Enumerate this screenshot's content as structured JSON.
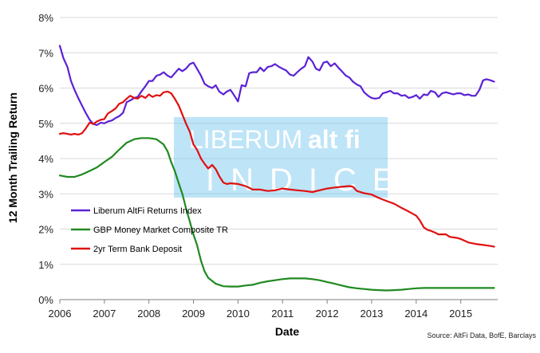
{
  "chart_data": {
    "type": "line",
    "xlabel": "Date",
    "ylabel": "12 Month Trailing Return",
    "source": "Source: AltFi Data, BofE, Barclays",
    "watermark": {
      "line1_a": "LIBERUM",
      "line1_b": "alt fi",
      "line2": "INDICES"
    },
    "xlim": [
      2006,
      2015.83
    ],
    "ylim": [
      0,
      8
    ],
    "x_ticks": [
      "2006",
      "2007",
      "2008",
      "2009",
      "2010",
      "2011",
      "2012",
      "2013",
      "2014",
      "2015"
    ],
    "y_ticks": [
      "0%",
      "1%",
      "2%",
      "3%",
      "4%",
      "5%",
      "6%",
      "7%",
      "8%"
    ],
    "grid": "horizontal",
    "legend_position": "bottom-left",
    "series": [
      {
        "name": "Liberum AltFi Returns Index",
        "color": "#5b21d6",
        "points": [
          [
            2006.0,
            7.2
          ],
          [
            2006.08,
            6.85
          ],
          [
            2006.17,
            6.6
          ],
          [
            2006.25,
            6.2
          ],
          [
            2006.33,
            5.95
          ],
          [
            2006.42,
            5.7
          ],
          [
            2006.5,
            5.5
          ],
          [
            2006.58,
            5.3
          ],
          [
            2006.67,
            5.1
          ],
          [
            2006.75,
            4.98
          ],
          [
            2006.83,
            4.95
          ],
          [
            2006.92,
            5.02
          ],
          [
            2007.0,
            5.0
          ],
          [
            2007.08,
            5.05
          ],
          [
            2007.17,
            5.08
          ],
          [
            2007.25,
            5.15
          ],
          [
            2007.33,
            5.2
          ],
          [
            2007.42,
            5.3
          ],
          [
            2007.5,
            5.6
          ],
          [
            2007.58,
            5.65
          ],
          [
            2007.67,
            5.72
          ],
          [
            2007.75,
            5.75
          ],
          [
            2007.83,
            5.9
          ],
          [
            2007.92,
            6.05
          ],
          [
            2008.0,
            6.2
          ],
          [
            2008.08,
            6.2
          ],
          [
            2008.17,
            6.35
          ],
          [
            2008.25,
            6.38
          ],
          [
            2008.33,
            6.45
          ],
          [
            2008.42,
            6.35
          ],
          [
            2008.5,
            6.3
          ],
          [
            2008.58,
            6.42
          ],
          [
            2008.67,
            6.55
          ],
          [
            2008.75,
            6.48
          ],
          [
            2008.83,
            6.55
          ],
          [
            2008.92,
            6.68
          ],
          [
            2009.0,
            6.72
          ],
          [
            2009.08,
            6.55
          ],
          [
            2009.17,
            6.35
          ],
          [
            2009.25,
            6.12
          ],
          [
            2009.33,
            6.05
          ],
          [
            2009.42,
            6.0
          ],
          [
            2009.5,
            6.08
          ],
          [
            2009.58,
            5.9
          ],
          [
            2009.67,
            5.82
          ],
          [
            2009.75,
            5.9
          ],
          [
            2009.83,
            5.95
          ],
          [
            2009.92,
            5.78
          ],
          [
            2010.0,
            5.62
          ],
          [
            2010.08,
            6.08
          ],
          [
            2010.17,
            6.05
          ],
          [
            2010.25,
            6.42
          ],
          [
            2010.33,
            6.45
          ],
          [
            2010.42,
            6.45
          ],
          [
            2010.5,
            6.58
          ],
          [
            2010.58,
            6.48
          ],
          [
            2010.67,
            6.6
          ],
          [
            2010.75,
            6.62
          ],
          [
            2010.83,
            6.68
          ],
          [
            2010.92,
            6.6
          ],
          [
            2011.0,
            6.55
          ],
          [
            2011.08,
            6.5
          ],
          [
            2011.17,
            6.38
          ],
          [
            2011.25,
            6.35
          ],
          [
            2011.33,
            6.45
          ],
          [
            2011.42,
            6.55
          ],
          [
            2011.5,
            6.62
          ],
          [
            2011.58,
            6.88
          ],
          [
            2011.67,
            6.75
          ],
          [
            2011.75,
            6.55
          ],
          [
            2011.83,
            6.5
          ],
          [
            2011.92,
            6.72
          ],
          [
            2012.0,
            6.75
          ],
          [
            2012.08,
            6.62
          ],
          [
            2012.17,
            6.7
          ],
          [
            2012.25,
            6.58
          ],
          [
            2012.33,
            6.48
          ],
          [
            2012.42,
            6.35
          ],
          [
            2012.5,
            6.3
          ],
          [
            2012.58,
            6.18
          ],
          [
            2012.67,
            6.1
          ],
          [
            2012.75,
            6.05
          ],
          [
            2012.83,
            5.88
          ],
          [
            2012.92,
            5.78
          ],
          [
            2013.0,
            5.72
          ],
          [
            2013.08,
            5.7
          ],
          [
            2013.17,
            5.72
          ],
          [
            2013.25,
            5.85
          ],
          [
            2013.33,
            5.88
          ],
          [
            2013.42,
            5.92
          ],
          [
            2013.5,
            5.85
          ],
          [
            2013.58,
            5.85
          ],
          [
            2013.67,
            5.78
          ],
          [
            2013.75,
            5.8
          ],
          [
            2013.83,
            5.72
          ],
          [
            2013.92,
            5.75
          ],
          [
            2014.0,
            5.8
          ],
          [
            2014.08,
            5.7
          ],
          [
            2014.17,
            5.82
          ],
          [
            2014.25,
            5.8
          ],
          [
            2014.33,
            5.92
          ],
          [
            2014.42,
            5.88
          ],
          [
            2014.5,
            5.75
          ],
          [
            2014.58,
            5.85
          ],
          [
            2014.67,
            5.88
          ],
          [
            2014.75,
            5.85
          ],
          [
            2014.83,
            5.82
          ],
          [
            2014.92,
            5.85
          ],
          [
            2015.0,
            5.85
          ],
          [
            2015.08,
            5.8
          ],
          [
            2015.17,
            5.82
          ],
          [
            2015.25,
            5.78
          ],
          [
            2015.33,
            5.78
          ],
          [
            2015.42,
            5.95
          ],
          [
            2015.5,
            6.22
          ],
          [
            2015.58,
            6.25
          ],
          [
            2015.67,
            6.22
          ],
          [
            2015.75,
            6.18
          ]
        ]
      },
      {
        "name": "GBP Money Market Composite TR",
        "color": "#1f8a1f",
        "points": [
          [
            2006.0,
            3.52
          ],
          [
            2006.17,
            3.48
          ],
          [
            2006.33,
            3.48
          ],
          [
            2006.5,
            3.55
          ],
          [
            2006.67,
            3.65
          ],
          [
            2006.83,
            3.75
          ],
          [
            2007.0,
            3.9
          ],
          [
            2007.17,
            4.05
          ],
          [
            2007.33,
            4.25
          ],
          [
            2007.5,
            4.45
          ],
          [
            2007.67,
            4.55
          ],
          [
            2007.83,
            4.58
          ],
          [
            2008.0,
            4.58
          ],
          [
            2008.17,
            4.55
          ],
          [
            2008.33,
            4.4
          ],
          [
            2008.42,
            4.2
          ],
          [
            2008.5,
            3.9
          ],
          [
            2008.58,
            3.65
          ],
          [
            2008.67,
            3.3
          ],
          [
            2008.75,
            3.0
          ],
          [
            2008.83,
            2.6
          ],
          [
            2008.92,
            2.2
          ],
          [
            2009.0,
            1.85
          ],
          [
            2009.08,
            1.55
          ],
          [
            2009.17,
            1.1
          ],
          [
            2009.25,
            0.8
          ],
          [
            2009.33,
            0.62
          ],
          [
            2009.5,
            0.45
          ],
          [
            2009.67,
            0.38
          ],
          [
            2009.83,
            0.37
          ],
          [
            2010.0,
            0.37
          ],
          [
            2010.17,
            0.4
          ],
          [
            2010.33,
            0.42
          ],
          [
            2010.5,
            0.48
          ],
          [
            2010.67,
            0.52
          ],
          [
            2010.83,
            0.55
          ],
          [
            2011.0,
            0.58
          ],
          [
            2011.17,
            0.6
          ],
          [
            2011.33,
            0.6
          ],
          [
            2011.5,
            0.6
          ],
          [
            2011.67,
            0.58
          ],
          [
            2011.83,
            0.55
          ],
          [
            2012.0,
            0.5
          ],
          [
            2012.17,
            0.45
          ],
          [
            2012.33,
            0.4
          ],
          [
            2012.5,
            0.35
          ],
          [
            2012.67,
            0.32
          ],
          [
            2012.83,
            0.3
          ],
          [
            2013.0,
            0.28
          ],
          [
            2013.17,
            0.27
          ],
          [
            2013.33,
            0.26
          ],
          [
            2013.5,
            0.27
          ],
          [
            2013.67,
            0.28
          ],
          [
            2013.83,
            0.3
          ],
          [
            2014.0,
            0.32
          ],
          [
            2014.17,
            0.33
          ],
          [
            2014.33,
            0.33
          ],
          [
            2014.5,
            0.33
          ],
          [
            2014.67,
            0.33
          ],
          [
            2014.83,
            0.33
          ],
          [
            2015.0,
            0.33
          ],
          [
            2015.17,
            0.33
          ],
          [
            2015.33,
            0.33
          ],
          [
            2015.5,
            0.33
          ],
          [
            2015.75,
            0.33
          ]
        ]
      },
      {
        "name": "2yr Term Bank Deposit",
        "color": "#e01010",
        "points": [
          [
            2006.0,
            4.7
          ],
          [
            2006.08,
            4.72
          ],
          [
            2006.17,
            4.7
          ],
          [
            2006.25,
            4.68
          ],
          [
            2006.33,
            4.7
          ],
          [
            2006.42,
            4.68
          ],
          [
            2006.5,
            4.72
          ],
          [
            2006.58,
            4.85
          ],
          [
            2006.67,
            5.02
          ],
          [
            2006.75,
            4.98
          ],
          [
            2006.83,
            5.05
          ],
          [
            2006.92,
            5.1
          ],
          [
            2007.0,
            5.12
          ],
          [
            2007.08,
            5.28
          ],
          [
            2007.17,
            5.35
          ],
          [
            2007.25,
            5.42
          ],
          [
            2007.33,
            5.55
          ],
          [
            2007.42,
            5.6
          ],
          [
            2007.5,
            5.7
          ],
          [
            2007.58,
            5.78
          ],
          [
            2007.67,
            5.72
          ],
          [
            2007.75,
            5.7
          ],
          [
            2007.83,
            5.78
          ],
          [
            2007.92,
            5.72
          ],
          [
            2008.0,
            5.82
          ],
          [
            2008.08,
            5.75
          ],
          [
            2008.17,
            5.8
          ],
          [
            2008.25,
            5.78
          ],
          [
            2008.33,
            5.88
          ],
          [
            2008.42,
            5.9
          ],
          [
            2008.5,
            5.85
          ],
          [
            2008.58,
            5.7
          ],
          [
            2008.67,
            5.5
          ],
          [
            2008.75,
            5.25
          ],
          [
            2008.83,
            5.0
          ],
          [
            2008.92,
            4.75
          ],
          [
            2009.0,
            4.4
          ],
          [
            2009.08,
            4.25
          ],
          [
            2009.17,
            4.0
          ],
          [
            2009.25,
            3.85
          ],
          [
            2009.33,
            3.72
          ],
          [
            2009.42,
            3.82
          ],
          [
            2009.5,
            3.7
          ],
          [
            2009.58,
            3.5
          ],
          [
            2009.67,
            3.32
          ],
          [
            2009.75,
            3.28
          ],
          [
            2009.83,
            3.3
          ],
          [
            2010.0,
            3.28
          ],
          [
            2010.17,
            3.22
          ],
          [
            2010.33,
            3.12
          ],
          [
            2010.5,
            3.12
          ],
          [
            2010.67,
            3.08
          ],
          [
            2010.83,
            3.1
          ],
          [
            2011.0,
            3.15
          ],
          [
            2011.17,
            3.12
          ],
          [
            2011.33,
            3.1
          ],
          [
            2011.5,
            3.08
          ],
          [
            2011.67,
            3.05
          ],
          [
            2011.83,
            3.1
          ],
          [
            2012.0,
            3.15
          ],
          [
            2012.17,
            3.18
          ],
          [
            2012.33,
            3.2
          ],
          [
            2012.5,
            3.22
          ],
          [
            2012.58,
            3.2
          ],
          [
            2012.67,
            3.08
          ],
          [
            2012.83,
            3.02
          ],
          [
            2013.0,
            2.98
          ],
          [
            2013.17,
            2.88
          ],
          [
            2013.33,
            2.8
          ],
          [
            2013.5,
            2.72
          ],
          [
            2013.67,
            2.6
          ],
          [
            2013.83,
            2.5
          ],
          [
            2014.0,
            2.38
          ],
          [
            2014.08,
            2.25
          ],
          [
            2014.17,
            2.05
          ],
          [
            2014.25,
            1.98
          ],
          [
            2014.33,
            1.95
          ],
          [
            2014.42,
            1.9
          ],
          [
            2014.5,
            1.85
          ],
          [
            2014.67,
            1.85
          ],
          [
            2014.75,
            1.78
          ],
          [
            2014.92,
            1.75
          ],
          [
            2015.0,
            1.72
          ],
          [
            2015.17,
            1.62
          ],
          [
            2015.33,
            1.58
          ],
          [
            2015.5,
            1.55
          ],
          [
            2015.67,
            1.52
          ],
          [
            2015.75,
            1.5
          ]
        ]
      }
    ]
  }
}
